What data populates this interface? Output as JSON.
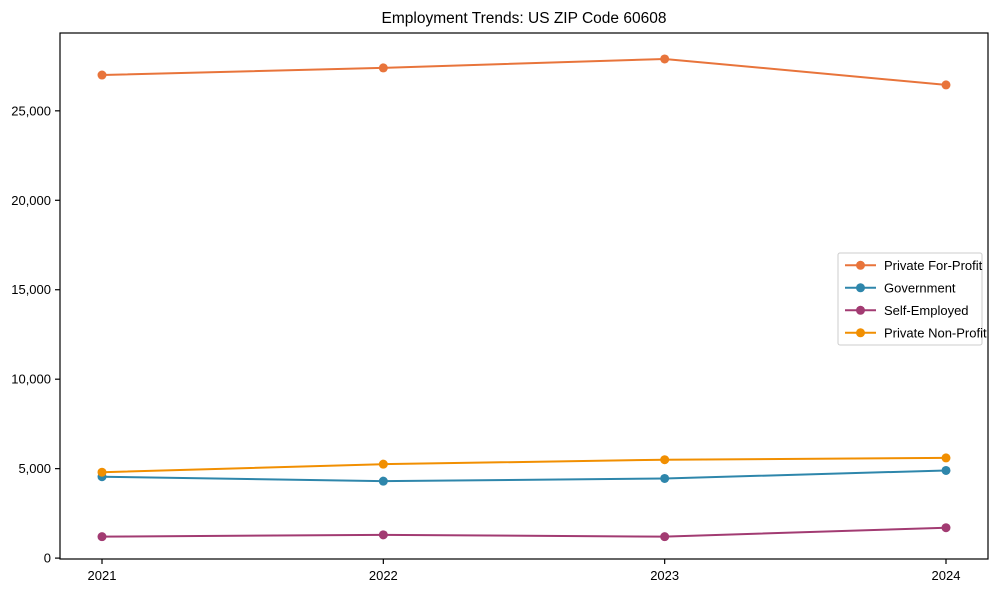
{
  "title": "Employment Trends: US ZIP Code 60608",
  "colors": {
    "background": "#ffffff",
    "spine": "#000000",
    "text": "#000000",
    "legend_border": "#cccccc",
    "legend_background": "#ffffff"
  },
  "chart_data": {
    "type": "line",
    "title": "Employment Trends: US ZIP Code 60608",
    "xlabel": "",
    "ylabel": "",
    "x": [
      "2021",
      "2022",
      "2023",
      "2024"
    ],
    "series": [
      {
        "name": "Private For-Profit",
        "color": "#E8743B",
        "values": [
          27000,
          27400,
          27900,
          26450
        ]
      },
      {
        "name": "Government",
        "color": "#2E86AB",
        "values": [
          4550,
          4300,
          4450,
          4900
        ]
      },
      {
        "name": "Self-Employed",
        "color": "#A23B72",
        "values": [
          1200,
          1300,
          1200,
          1700
        ]
      },
      {
        "name": "Private Non-Profit",
        "color": "#F18F01",
        "values": [
          4800,
          5250,
          5500,
          5600
        ]
      }
    ],
    "yticks": [
      0,
      5000,
      10000,
      15000,
      20000,
      25000
    ],
    "ytick_labels": [
      "0",
      "5,000",
      "10,000",
      "15,000",
      "20,000",
      "25,000"
    ],
    "ylim": [
      -50,
      29350
    ],
    "grid": false,
    "marker": "o",
    "legend_position": "center right"
  }
}
